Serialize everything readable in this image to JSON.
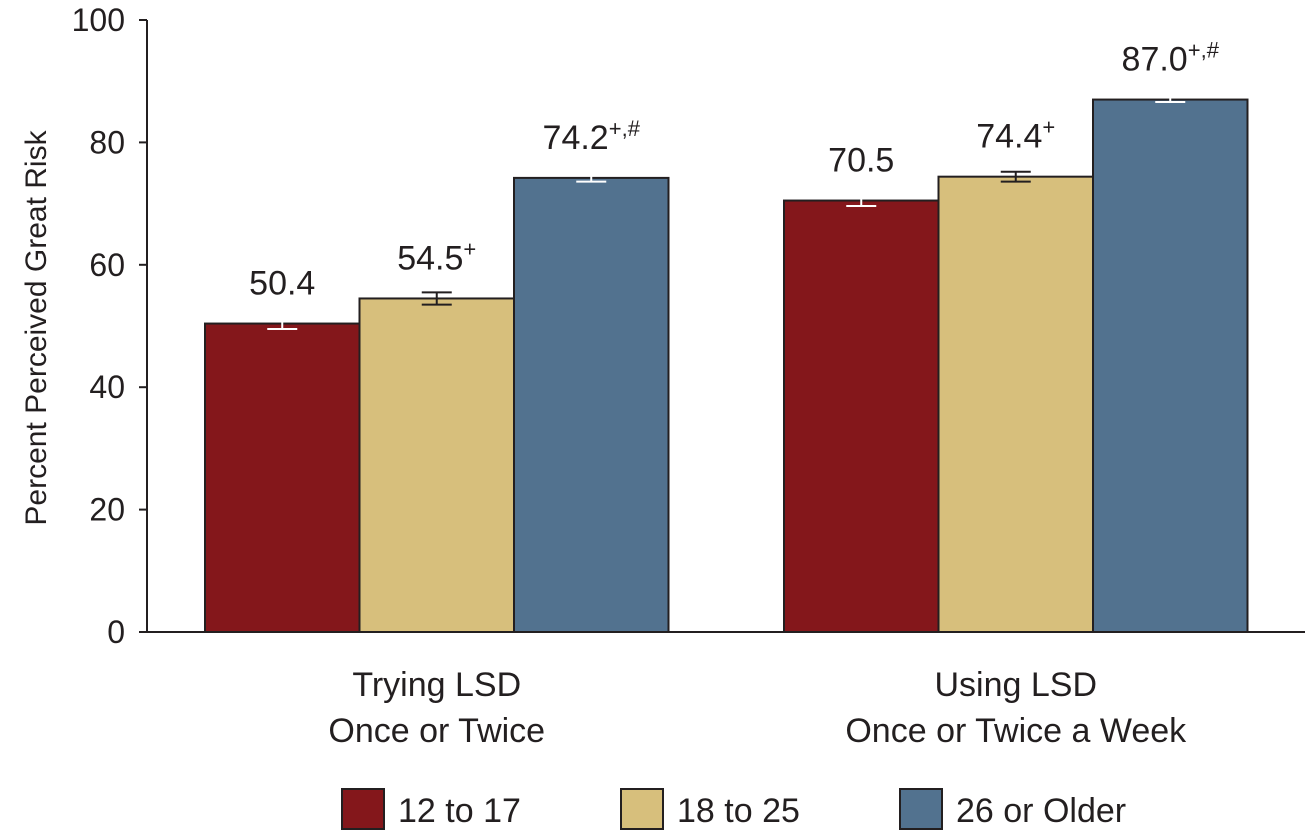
{
  "chart_data": {
    "type": "bar",
    "title": "",
    "xlabel": "",
    "ylabel": "Percent Perceived Great Risk",
    "ylim": [
      0,
      100
    ],
    "yticks": [
      0,
      20,
      40,
      60,
      80,
      100
    ],
    "grid": false,
    "legend_position": "bottom",
    "categories": [
      [
        "Trying LSD",
        "Once or Twice"
      ],
      [
        "Using LSD",
        "Once or Twice a Week"
      ]
    ],
    "series": [
      {
        "name": "12 to 17",
        "color": "#84171b",
        "errorbar_color": "#ffffff",
        "values": [
          50.4,
          70.5
        ],
        "errors": [
          0.9,
          0.9
        ],
        "labels": [
          "50.4",
          "70.5"
        ],
        "superscripts": [
          "",
          ""
        ]
      },
      {
        "name": "18 to 25",
        "color": "#d7bf7c",
        "errorbar_color": "#231f20",
        "values": [
          54.5,
          74.4
        ],
        "errors": [
          1.0,
          0.8
        ],
        "labels": [
          "54.5",
          "74.4"
        ],
        "superscripts": [
          "+",
          "+"
        ]
      },
      {
        "name": "26 or Older",
        "color": "#52728f",
        "errorbar_color": "#ffffff",
        "values": [
          74.2,
          87.0
        ],
        "errors": [
          0.6,
          0.4
        ],
        "labels": [
          "74.2",
          "87.0"
        ],
        "superscripts": [
          "+,#",
          "+,#"
        ]
      }
    ]
  }
}
